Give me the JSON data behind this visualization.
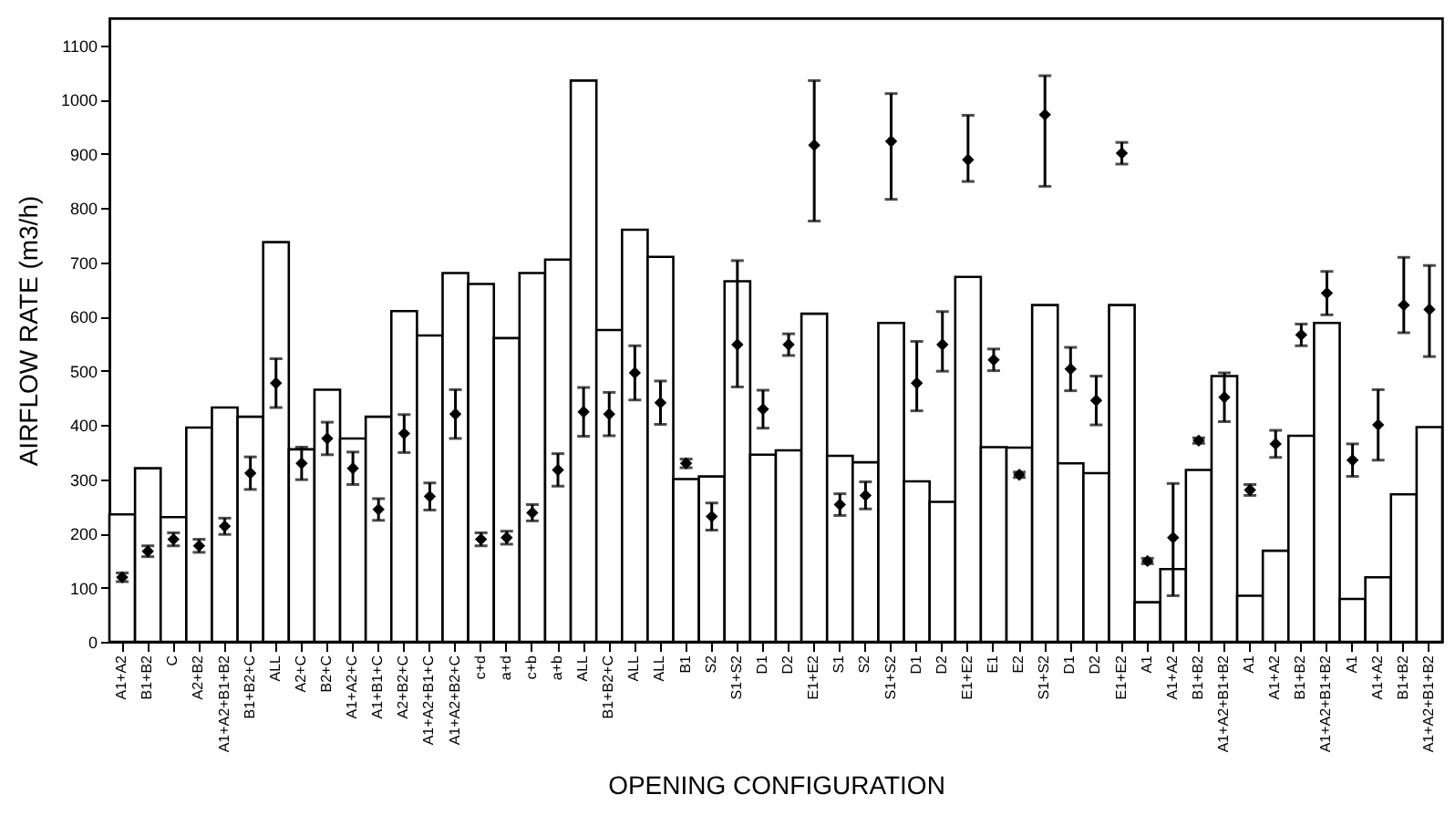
{
  "chart_data": {
    "type": "bar",
    "xlabel": "OPENING CONFIGURATION",
    "ylabel": "AIRFLOW RATE (m3/h)",
    "ylim": [
      0,
      1150
    ],
    "yticks": [
      0,
      100,
      200,
      300,
      400,
      500,
      600,
      700,
      800,
      900,
      1000,
      1100
    ],
    "marker": "diamond",
    "categories": [
      "A1+A2",
      "B1+B2",
      "C",
      "A2+B2",
      "A1+A2+B1+B2",
      "B1+B2+C",
      "ALL",
      "A2+C",
      "B2+C",
      "A1+A2+C",
      "A1+B1+C",
      "A2+B2+C",
      "A1+A2+B1+C",
      "A1+A2+B2+C",
      "c+d",
      "a+d",
      "c+b",
      "a+b",
      "ALL",
      "B1+B2+C",
      "ALL",
      "ALL",
      "B1",
      "S2",
      "S1+S2",
      "D1",
      "D2",
      "E1+E2",
      "S1",
      "S2",
      "S1+S2",
      "D1",
      "D2",
      "E1+E2",
      "E1",
      "E2",
      "S1+S2",
      "D1",
      "D2",
      "E1+E2",
      "A1",
      "A1+A2",
      "B1+B2",
      "A1+A2+B1+B2",
      "A1",
      "A1+A2",
      "B1+B2",
      "A1+A2+B1+B2",
      "A1",
      "A1+A2",
      "B1+B2",
      "A1+A2+B1+B2"
    ],
    "series": [
      {
        "type": "bar",
        "color": "#ffffff",
        "values": [
          235,
          320,
          230,
          395,
          432,
          415,
          737,
          355,
          465,
          375,
          415,
          610,
          565,
          680,
          660,
          560,
          680,
          705,
          1035,
          575,
          760,
          710,
          300,
          305,
          665,
          345,
          353,
          605,
          343,
          331,
          588,
          296,
          258,
          673,
          359,
          358,
          621,
          329,
          311,
          621,
          73,
          134,
          317,
          490,
          85,
          168,
          380,
          588,
          79,
          119,
          272,
          396
        ]
      },
      {
        "type": "scatter",
        "color": "#000000",
        "values": [
          119,
          167,
          189,
          177,
          213,
          311,
          477,
          329,
          375,
          320,
          244,
          384,
          268,
          420,
          189,
          192,
          238,
          317,
          424,
          420,
          496,
          441,
          329,
          231,
          548,
          429,
          548,
          916,
          253,
          270,
          923,
          477,
          548,
          889,
          520,
          308,
          972,
          503,
          445,
          901,
          149,
          192,
          371,
          451,
          280,
          365,
          566,
          643,
          335,
          400,
          621,
          613
        ],
        "errors": [
          8,
          10,
          12,
          12,
          15,
          30,
          45,
          30,
          30,
          30,
          20,
          35,
          25,
          45,
          12,
          12,
          15,
          30,
          45,
          40,
          50,
          40,
          8,
          25,
          [
            470,
            703
          ],
          35,
          20,
          [
            776,
            1035
          ],
          20,
          25,
          [
            816,
            1011
          ],
          [
            426,
            554
          ],
          [
            499,
            609
          ],
          [
            849,
            971
          ],
          20,
          5,
          [
            840,
            1044
          ],
          40,
          45,
          20,
          5,
          [
            85,
            292
          ],
          5,
          45,
          10,
          25,
          20,
          40,
          30,
          65,
          [
            570,
            709
          ],
          [
            526,
            694
          ]
        ]
      }
    ]
  }
}
